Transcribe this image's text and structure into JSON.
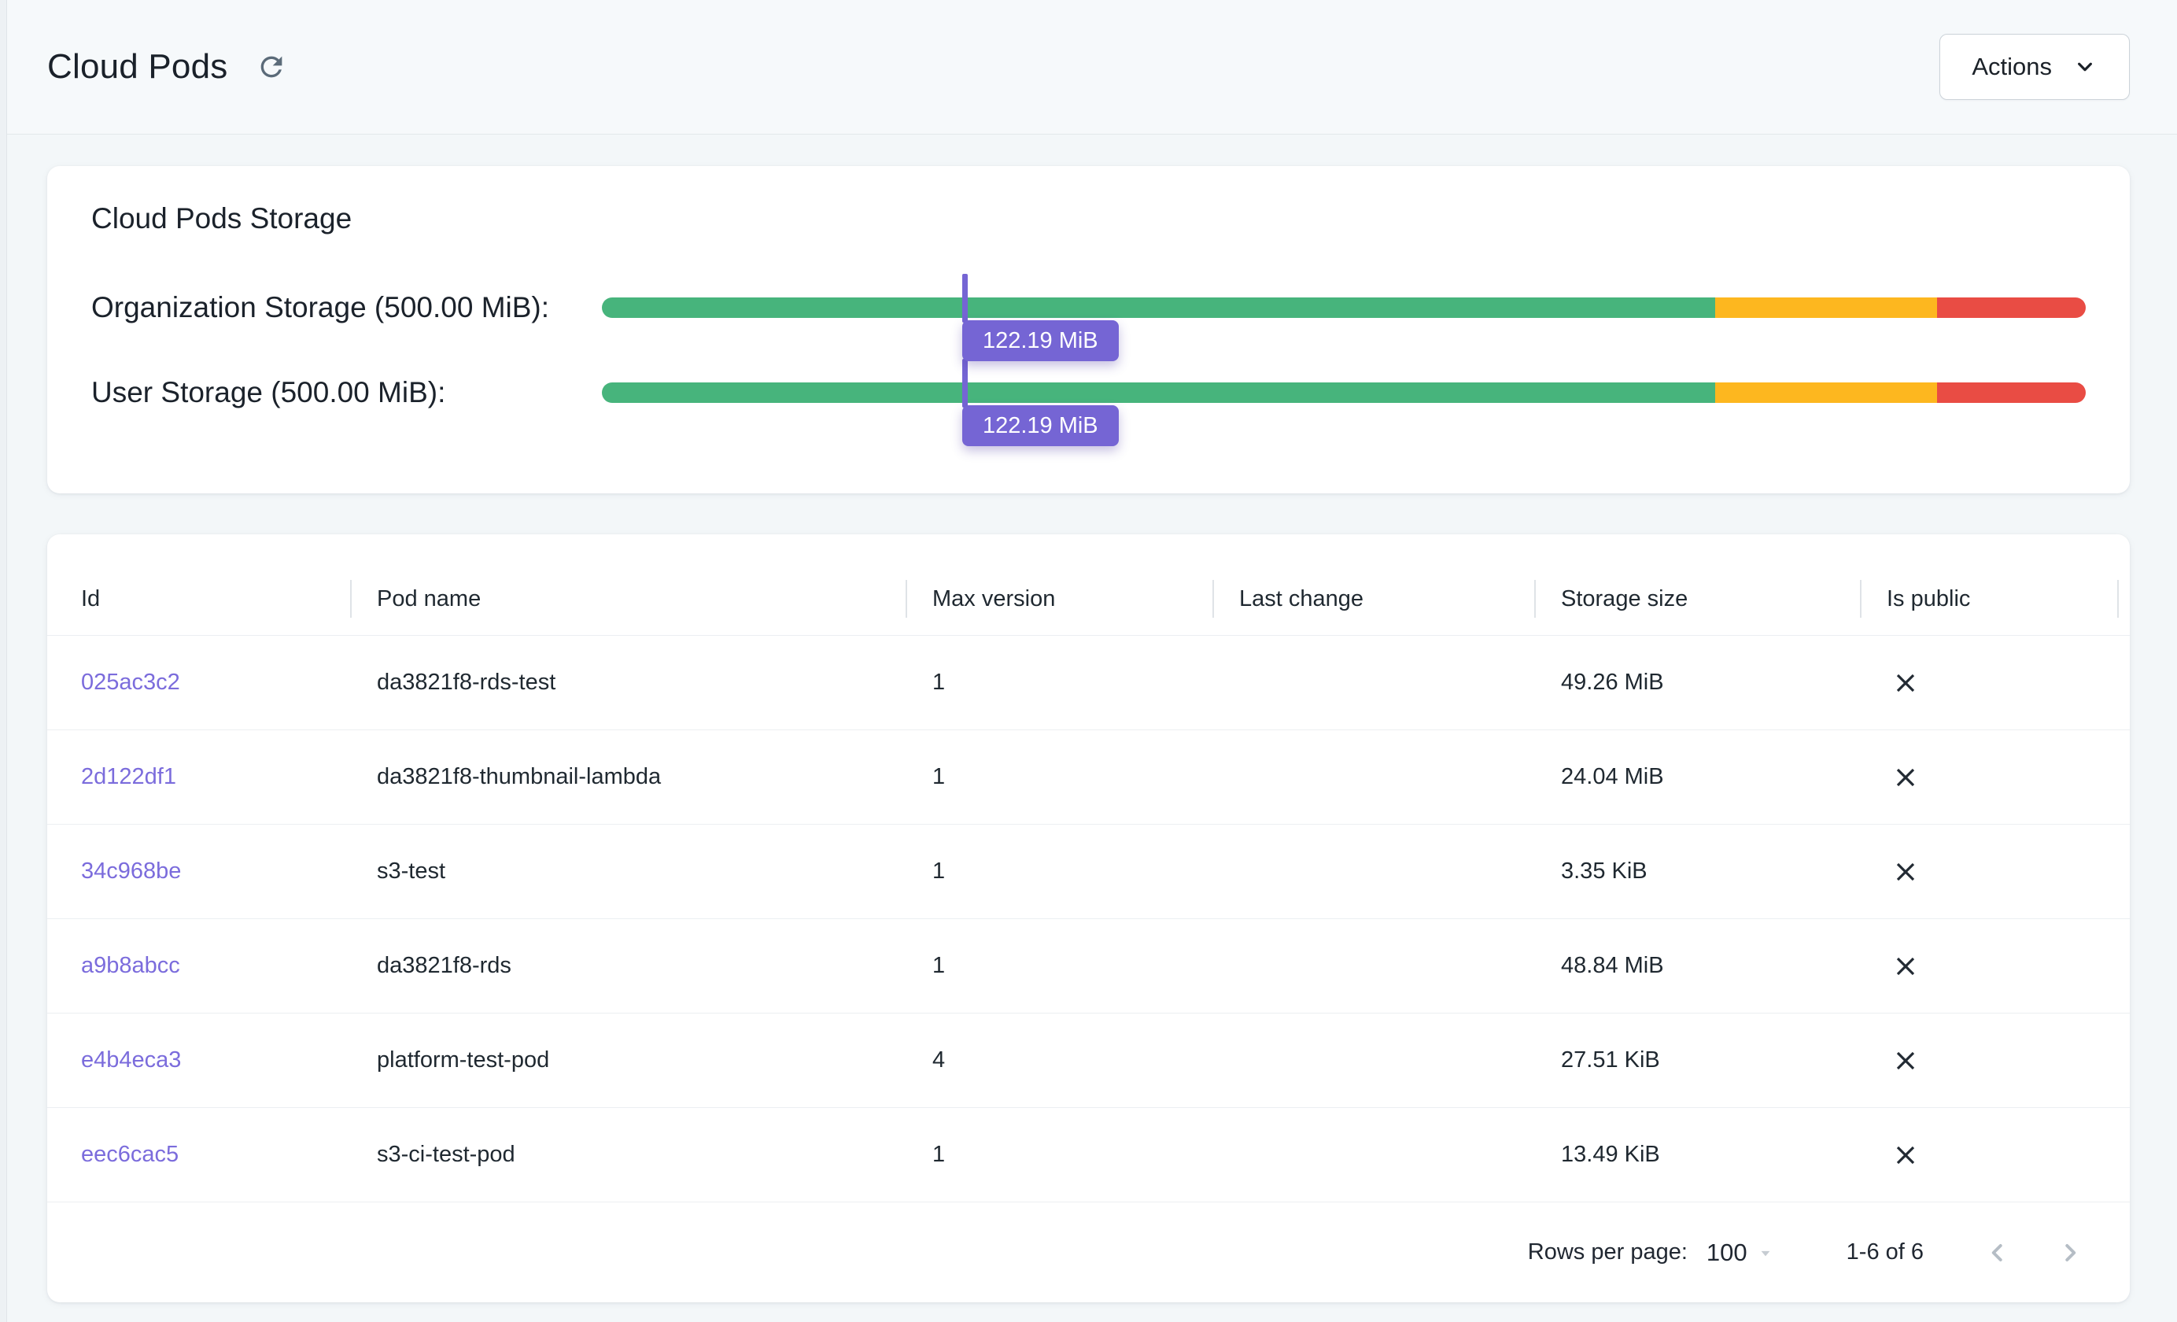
{
  "header": {
    "title": "Cloud Pods",
    "actions_label": "Actions"
  },
  "storage": {
    "title": "Cloud Pods Storage",
    "bars": [
      {
        "label": "Organization Storage (500.00 MiB):",
        "value_label": "122.19 MiB",
        "percent": 24.44,
        "capacity": "500.00 MiB",
        "used": "122.19 MiB"
      },
      {
        "label": "User Storage (500.00 MiB):",
        "value_label": "122.19 MiB",
        "percent": 24.44,
        "capacity": "500.00 MiB",
        "used": "122.19 MiB"
      }
    ],
    "segments": {
      "green_pct": 75,
      "amber_pct": 15,
      "red_pct": 10
    }
  },
  "table": {
    "columns": [
      "Id",
      "Pod name",
      "Max version",
      "Last change",
      "Storage size",
      "Is public"
    ],
    "rows": [
      {
        "id": "025ac3c2",
        "pod_name": "da3821f8-rds-test",
        "max_version": "1",
        "last_change": "",
        "storage_size": "49.26 MiB",
        "is_public": false
      },
      {
        "id": "2d122df1",
        "pod_name": "da3821f8-thumbnail-lambda",
        "max_version": "1",
        "last_change": "",
        "storage_size": "24.04 MiB",
        "is_public": false
      },
      {
        "id": "34c968be",
        "pod_name": "s3-test",
        "max_version": "1",
        "last_change": "",
        "storage_size": "3.35 KiB",
        "is_public": false
      },
      {
        "id": "a9b8abcc",
        "pod_name": "da3821f8-rds",
        "max_version": "1",
        "last_change": "",
        "storage_size": "48.84 MiB",
        "is_public": false
      },
      {
        "id": "e4b4eca3",
        "pod_name": "platform-test-pod",
        "max_version": "4",
        "last_change": "",
        "storage_size": "27.51 KiB",
        "is_public": false
      },
      {
        "id": "eec6cac5",
        "pod_name": "s3-ci-test-pod",
        "max_version": "1",
        "last_change": "",
        "storage_size": "13.49 KiB",
        "is_public": false
      }
    ],
    "pagination": {
      "rows_per_page_label": "Rows per page:",
      "rows_per_page": "100",
      "range_label": "1-6 of 6"
    }
  },
  "colors": {
    "green": "#47b47c",
    "amber": "#fdb71f",
    "red": "#e94c44",
    "purple": "#7565d4",
    "link": "#7b6cdc"
  }
}
